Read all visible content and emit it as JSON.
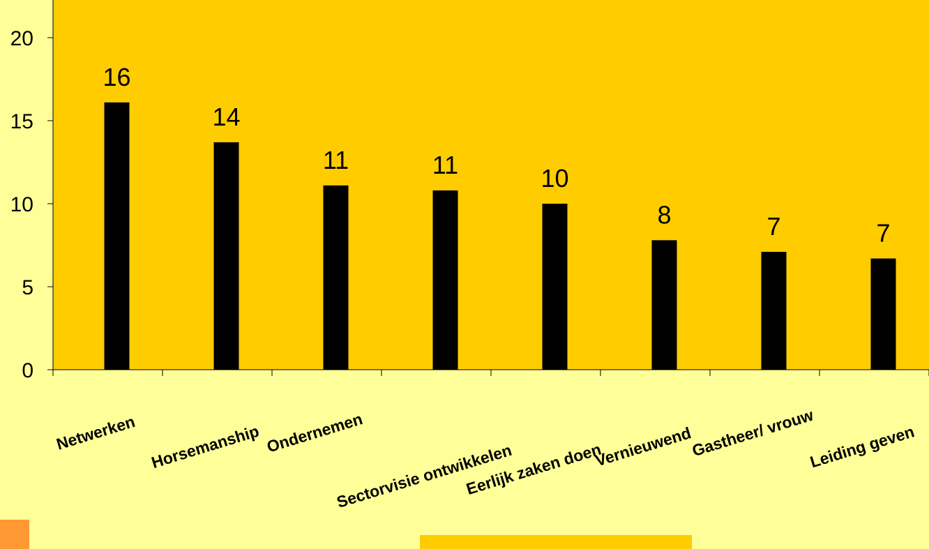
{
  "chart_data": {
    "type": "bar",
    "title": "",
    "xlabel": "",
    "ylabel": "",
    "categories": [
      "Netwerken",
      "Horsemanship",
      "Ondernemen",
      "Sectorvisie ontwikkelen",
      "Eerlijk zaken doen",
      "Vernieuwend",
      "Gastheer/ vrouw",
      "Leiding geven"
    ],
    "values": [
      16.1,
      13.7,
      11.1,
      10.8,
      10,
      7.8,
      7.1,
      6.7
    ],
    "data_labels": [
      "16",
      "14",
      "11",
      "11",
      "10",
      "8",
      "7",
      "7"
    ],
    "ylim": [
      0,
      20
    ],
    "yticks": [
      "0",
      "5",
      "10",
      "15",
      "20"
    ],
    "grid": false,
    "legend": "none",
    "colors": {
      "plot_background": "#FFCC00",
      "page_background": "#FFFF99",
      "bar": "#000000"
    }
  }
}
